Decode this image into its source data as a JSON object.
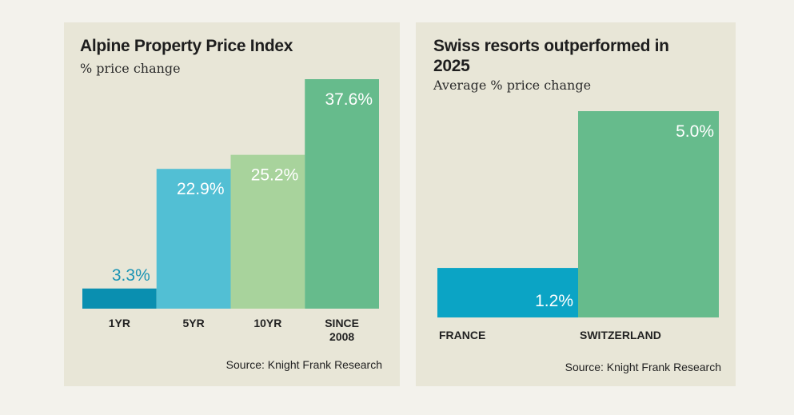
{
  "chart_data": [
    {
      "type": "bar",
      "title": "Alpine Property Price Index",
      "subtitle": "% price change",
      "categories": [
        [
          "1YR"
        ],
        [
          "5YR"
        ],
        [
          "10YR"
        ],
        [
          "SINCE",
          "2008"
        ]
      ],
      "values": [
        3.3,
        22.9,
        25.2,
        37.6
      ],
      "data_labels": [
        "3.3%",
        "22.9%",
        "25.2%",
        "37.6%"
      ],
      "colors": [
        "#0a8fb0",
        "#52bfd4",
        "#a8d39c",
        "#66bb8c"
      ],
      "label_colors": [
        "#1a94b4",
        "#ffffff",
        "#ffffff",
        "#ffffff"
      ],
      "ylim": [
        0,
        37.6
      ],
      "grid": false,
      "source": "Source: Knight Frank Research"
    },
    {
      "type": "bar",
      "title": "Swiss resorts outperformed in 2025",
      "subtitle": "Average % price change",
      "categories": [
        [
          "FRANCE"
        ],
        [
          "SWITZERLAND"
        ]
      ],
      "values": [
        1.2,
        5.0
      ],
      "data_labels": [
        "1.2%",
        "5.0%"
      ],
      "colors": [
        "#0ba4c5",
        "#66bb8c"
      ],
      "label_colors": [
        "#ffffff",
        "#ffffff"
      ],
      "ylim": [
        0,
        5.0
      ],
      "grid": false,
      "source": "Source: Knight Frank Research"
    }
  ]
}
